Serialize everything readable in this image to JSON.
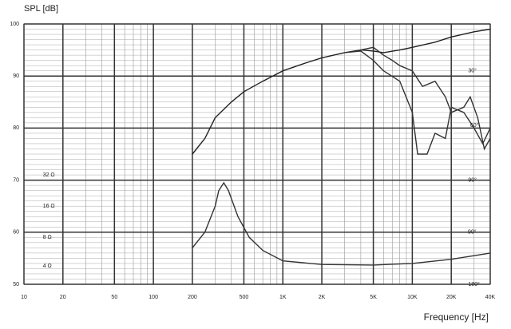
{
  "chart_data": {
    "type": "line",
    "y_label": "SPL [dB]",
    "x_label": "Frequency [Hz]",
    "xscale": "log",
    "xlim": [
      10,
      40000
    ],
    "ylim": [
      50,
      100
    ],
    "xticks": [
      10,
      20,
      50,
      100,
      200,
      500,
      {
        "value": 1000,
        "label": "1K"
      },
      {
        "value": 2000,
        "label": "2K"
      },
      {
        "value": 5000,
        "label": "5K"
      },
      {
        "value": 10000,
        "label": "10K"
      },
      {
        "value": 20000,
        "label": "20K"
      },
      {
        "value": 40000,
        "label": "40K"
      }
    ],
    "yticks": [
      50,
      60,
      70,
      80,
      90,
      100
    ],
    "grid": true,
    "series": [
      {
        "color": "#222222",
        "x": [
          200,
          250,
          300,
          400,
          500,
          700,
          1000,
          1500,
          2000,
          3000,
          4000,
          5000,
          6000,
          8000,
          10000,
          15000,
          20000,
          30000,
          40000
        ],
        "values": [
          75,
          78,
          82,
          85,
          87,
          89,
          91,
          92.5,
          93.5,
          94.5,
          95,
          94.8,
          94.5,
          95,
          95.5,
          96.5,
          97.5,
          98.5,
          99
        ]
      },
      {
        "color": "#333333",
        "x": [
          4000,
          5000,
          6000,
          7000,
          8000,
          10000,
          12000,
          15000,
          18000,
          20000,
          25000,
          28000,
          32000,
          36000,
          40000
        ],
        "values": [
          95,
          95.5,
          94,
          93,
          92,
          91,
          88,
          89,
          86,
          83,
          84,
          86,
          82,
          76,
          78
        ]
      },
      {
        "color": "#333333",
        "x": [
          3000,
          4000,
          5000,
          6000,
          8000,
          10000,
          11000,
          13000,
          15000,
          18000,
          20000,
          25000,
          30000,
          35000,
          40000
        ],
        "values": [
          94.5,
          94.8,
          93,
          91,
          89,
          83,
          75,
          75,
          79,
          78,
          84,
          83,
          80,
          77,
          80
        ]
      },
      {
        "color": "#333333",
        "x": [
          200,
          250,
          300,
          320,
          350,
          380,
          450,
          550,
          700,
          1000,
          2000,
          5000,
          10000,
          20000,
          40000
        ],
        "values": [
          57,
          60,
          65,
          68,
          69.5,
          68,
          63,
          59,
          56.5,
          54.5,
          53.8,
          53.7,
          54,
          54.8,
          56
        ]
      }
    ],
    "annotations": [
      {
        "text": "32 Ω",
        "x": 14,
        "y": 71
      },
      {
        "text": "16 Ω",
        "x": 14,
        "y": 65
      },
      {
        "text": "8 Ω",
        "x": 14,
        "y": 59
      },
      {
        "text": "4 Ω",
        "x": 14,
        "y": 53.5
      },
      {
        "text": "30°",
        "x": 27000,
        "y": 91
      },
      {
        "text": "60°",
        "x": 28000,
        "y": 80.5
      },
      {
        "text": "90°",
        "x": 27000,
        "y": 70
      },
      {
        "text": "-90°",
        "x": 26000,
        "y": 60
      },
      {
        "text": "180°",
        "x": 27000,
        "y": 50
      }
    ]
  }
}
